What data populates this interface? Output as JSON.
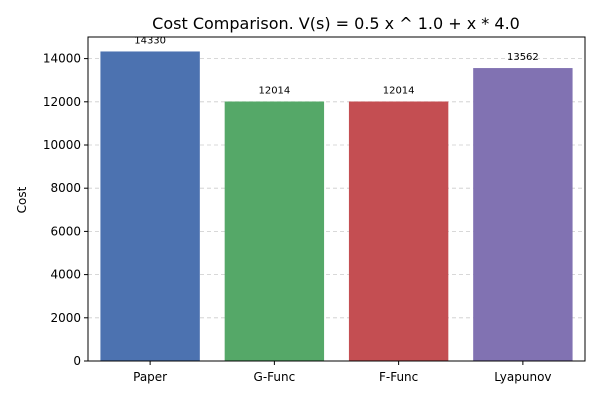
{
  "chart_data": {
    "type": "bar",
    "title": "Cost Comparison. V(s) = 0.5 x ^ 1.0 + x * 4.0",
    "xlabel": "",
    "ylabel": "Cost",
    "categories": [
      "Paper",
      "G-Func",
      "F-Func",
      "Lyapunov"
    ],
    "values": [
      14330,
      12014,
      12014,
      13562
    ],
    "data_labels": [
      "14330",
      "12014",
      "12014",
      "13562"
    ],
    "colors": [
      "#4c72b0",
      "#55a868",
      "#c44e52",
      "#8172b2"
    ],
    "ylim": [
      0,
      15000
    ],
    "yticks": [
      0,
      2000,
      4000,
      6000,
      8000,
      10000,
      12000,
      14000
    ],
    "ytick_labels": [
      "0",
      "2000",
      "4000",
      "6000",
      "8000",
      "10000",
      "12000",
      "14000"
    ],
    "grid": true,
    "grid_axis": "y",
    "grid_style": "dashed",
    "legend": false
  }
}
